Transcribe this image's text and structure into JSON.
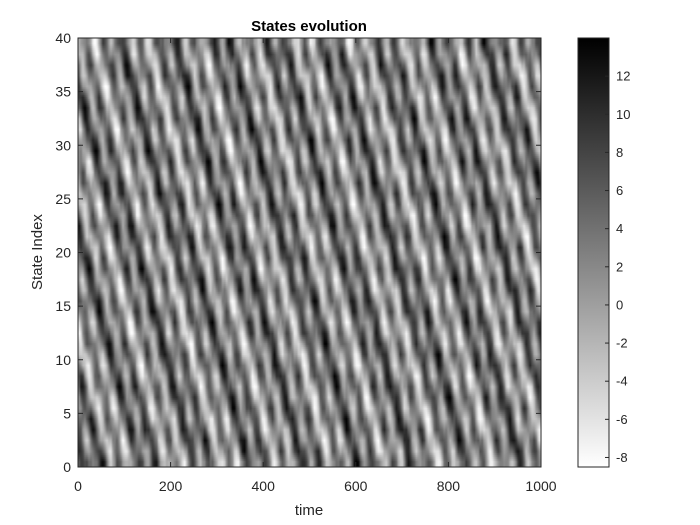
{
  "chart_data": {
    "type": "heatmap",
    "title": "States evolution",
    "xlabel": "time",
    "ylabel": "State Index",
    "xlim": [
      0,
      1000
    ],
    "ylim": [
      0,
      40
    ],
    "x_ticks": [
      0,
      200,
      400,
      600,
      800,
      1000
    ],
    "y_ticks": [
      0,
      5,
      10,
      15,
      20,
      25,
      30,
      35,
      40
    ],
    "colormap": "gray (low = white, high = black)",
    "color_range": [
      -8.5,
      14
    ],
    "colorbar_ticks": [
      -8,
      -6,
      -4,
      -2,
      0,
      2,
      4,
      6,
      8,
      10,
      12
    ],
    "n_states": 40,
    "time_steps": 1000,
    "pattern": "diagonal travelling streaks drifting down-right (Lorenz-96-like dynamics)",
    "grid": false,
    "colorbar": "right"
  }
}
